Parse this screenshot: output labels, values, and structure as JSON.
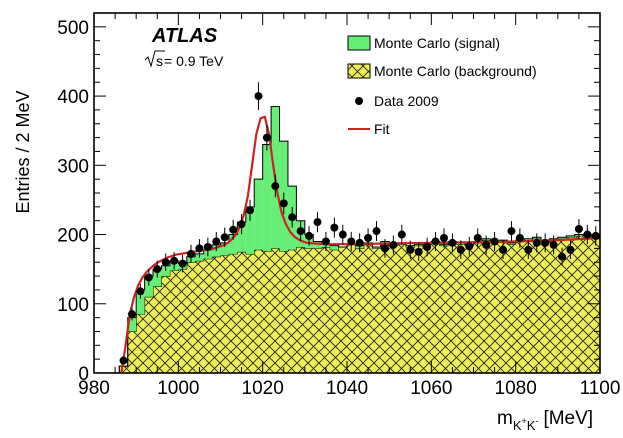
{
  "chart_data": {
    "type": "histogram",
    "experiment": "ATLAS",
    "energy_prefix": "s",
    "energy_value": " = 0.9 TeV",
    "xlabel_main": "m",
    "xlabel_sub": "K",
    "xlabel_sub_sup1": "+",
    "xlabel_sub2": "K",
    "xlabel_sub_sup2": "-",
    "xlabel_unit": "[MeV]",
    "ylabel": "Entries / 2 MeV",
    "xlim": [
      980,
      1100
    ],
    "ylim": [
      0,
      520
    ],
    "x_ticks": [
      "980",
      "1000",
      "1020",
      "1040",
      "1060",
      "1080",
      "1100"
    ],
    "y_ticks": [
      "0",
      "100",
      "200",
      "300",
      "400",
      "500"
    ],
    "legend_position": "top-right",
    "legend": [
      "Monte Carlo (signal)",
      "Monte Carlo (background)",
      "Data 2009",
      "Fit"
    ],
    "colors": {
      "signal": "#66ee77",
      "background": "#eeee55",
      "data": "#000000",
      "fit": "#cc2222"
    },
    "bin_width": 2,
    "bin_edges_start": 986,
    "mc_signal_plus_background": [
      10,
      80,
      120,
      140,
      150,
      155,
      162,
      158,
      168,
      172,
      178,
      185,
      188,
      200,
      218,
      240,
      280,
      330,
      385,
      335,
      270,
      220,
      200,
      190,
      186,
      184,
      182,
      186,
      184,
      188,
      182,
      190,
      186,
      188,
      184,
      186,
      188,
      190,
      186,
      190,
      188,
      186,
      190,
      194,
      190,
      192,
      188,
      192,
      194,
      196,
      192,
      194,
      196,
      198,
      200,
      198,
      196
    ],
    "mc_background": [
      10,
      60,
      85,
      110,
      125,
      140,
      148,
      150,
      160,
      162,
      165,
      168,
      170,
      172,
      175,
      172,
      178,
      176,
      180,
      176,
      178,
      182,
      180,
      180,
      182,
      178,
      182,
      186,
      180,
      186,
      180,
      188,
      184,
      186,
      182,
      184,
      186,
      188,
      184,
      188,
      186,
      184,
      188,
      192,
      188,
      190,
      186,
      190,
      192,
      194,
      190,
      192,
      194,
      196,
      198,
      196,
      194
    ],
    "data_points": {
      "x": [
        987,
        989,
        991,
        993,
        995,
        997,
        999,
        1001,
        1003,
        1005,
        1007,
        1009,
        1011,
        1013,
        1015,
        1017,
        1019,
        1021,
        1023,
        1025,
        1027,
        1029,
        1031,
        1033,
        1035,
        1037,
        1039,
        1041,
        1043,
        1045,
        1047,
        1049,
        1051,
        1053,
        1055,
        1057,
        1059,
        1061,
        1063,
        1065,
        1067,
        1069,
        1071,
        1073,
        1075,
        1077,
        1079,
        1081,
        1083,
        1085,
        1087,
        1089,
        1091,
        1093,
        1095,
        1097,
        1099
      ],
      "y": [
        18,
        85,
        118,
        138,
        150,
        160,
        162,
        158,
        172,
        180,
        182,
        190,
        196,
        207,
        215,
        235,
        400,
        340,
        270,
        245,
        225,
        205,
        198,
        218,
        190,
        210,
        200,
        190,
        188,
        195,
        205,
        180,
        185,
        200,
        178,
        175,
        182,
        190,
        195,
        188,
        178,
        183,
        195,
        185,
        190,
        178,
        205,
        195,
        178,
        188,
        188,
        185,
        168,
        178,
        208,
        200,
        198
      ]
    },
    "fit_curve": {
      "x": [
        986.5,
        987.5,
        988.5,
        989.5,
        990.5,
        991.5,
        992.5,
        993.5,
        994.5,
        995.5,
        996.5,
        997.5,
        998.5,
        999.5,
        1000.5,
        1001.5,
        1002.5,
        1003.5,
        1004.5,
        1005.5,
        1006.5,
        1007.5,
        1008.5,
        1009.5,
        1010.5,
        1011.5,
        1012.5,
        1013.5,
        1014.5,
        1015.5,
        1016.5,
        1017.5,
        1018.5,
        1019.5,
        1020.5,
        1021.5,
        1022.5,
        1023.5,
        1024.5,
        1025.5,
        1026.5,
        1027.5,
        1028.5,
        1029.5,
        1030.5,
        1032.5,
        1035,
        1040,
        1050,
        1060,
        1070,
        1080,
        1090,
        1100
      ],
      "y": [
        0,
        40,
        85,
        110,
        127,
        138,
        146,
        152,
        157,
        161,
        164,
        167,
        169,
        171,
        172,
        173,
        174,
        175,
        176,
        177,
        178,
        179,
        180,
        182,
        184,
        187,
        192,
        199,
        210,
        228,
        256,
        300,
        345,
        368,
        370,
        345,
        300,
        260,
        232,
        215,
        204,
        197,
        193,
        190,
        188,
        187,
        186,
        186,
        187,
        188,
        189,
        190,
        192,
        195
      ]
    }
  }
}
